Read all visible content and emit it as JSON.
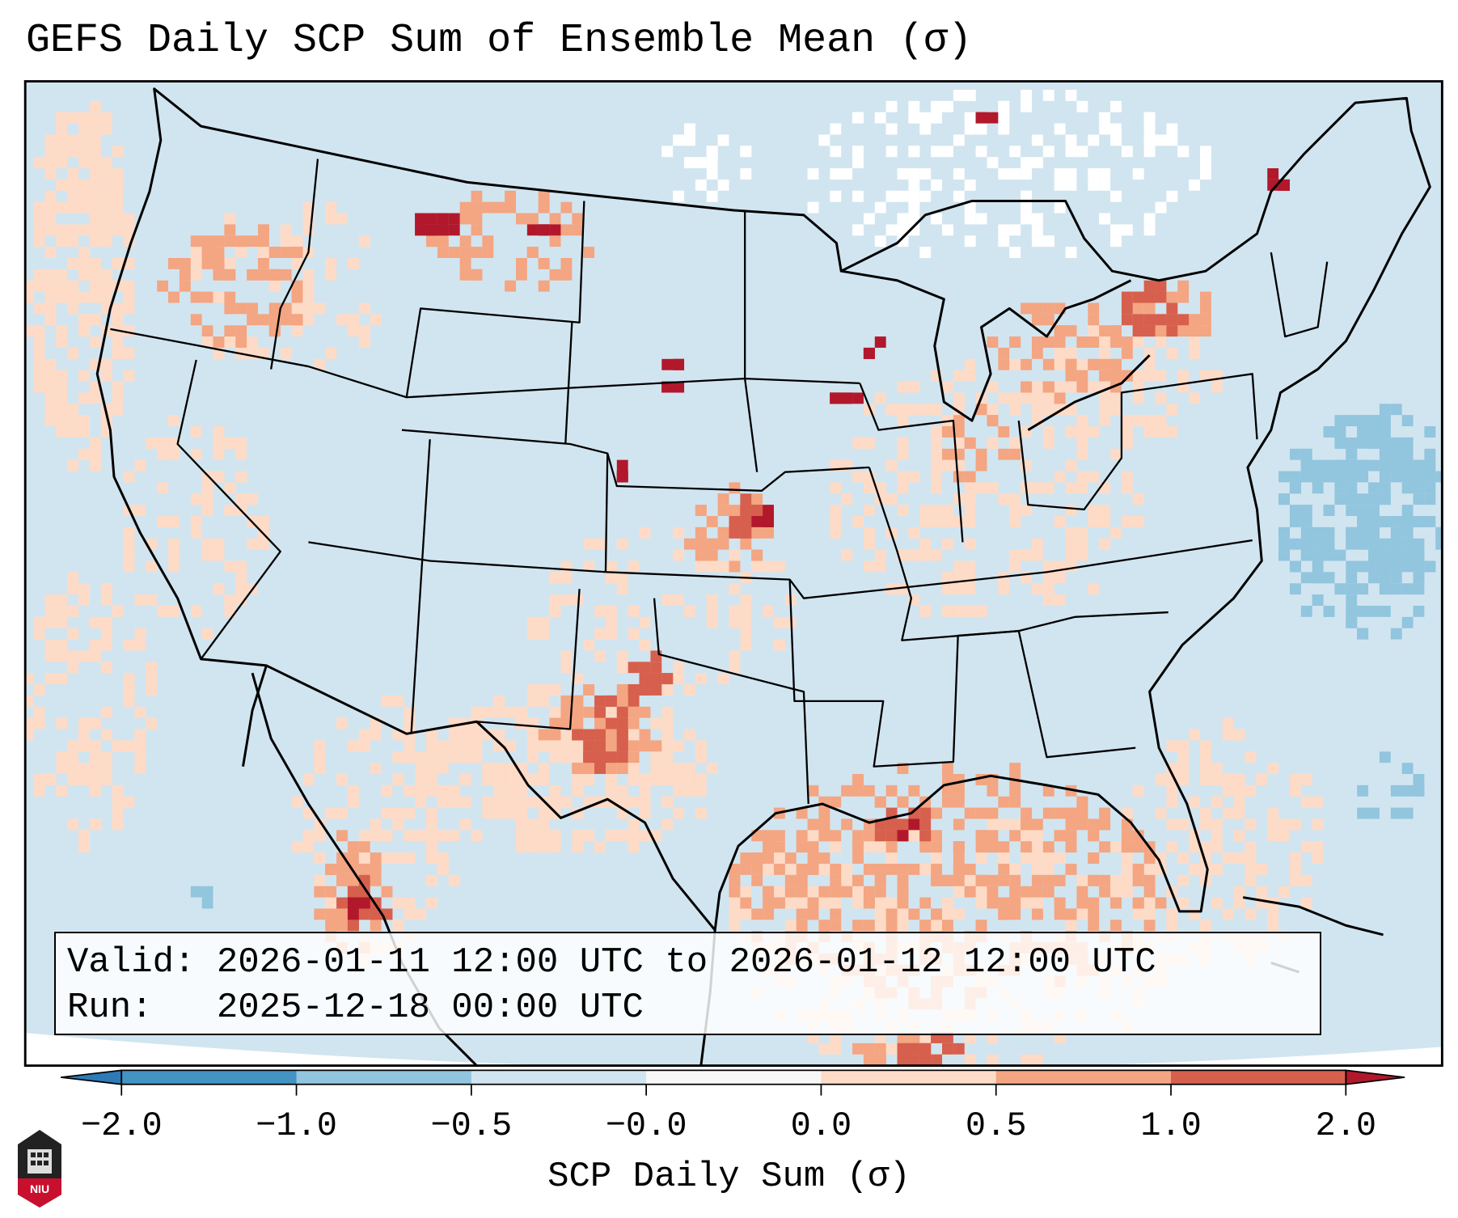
{
  "title": "GEFS Daily SCP Sum of Ensemble Mean (σ)",
  "info": {
    "valid_label": "Valid:",
    "valid_value": "2026-01-11 12:00 UTC to 2026-01-12 12:00 UTC",
    "run_label": "Run:  ",
    "run_value": "2025-12-18 00:00 UTC"
  },
  "colorbar": {
    "label": "SCP Daily Sum (σ)",
    "ticks": [
      "−2.0",
      "−1.0",
      "−0.5",
      "−0.0",
      "0.0",
      "0.5",
      "1.0",
      "2.0"
    ],
    "colors": [
      "#2c7bb6",
      "#4393c3",
      "#92c5de",
      "#d1e5f0",
      "#f7f7f7",
      "#fddbc7",
      "#f4a582",
      "#d6604d",
      "#b2182b"
    ],
    "extend": "both"
  },
  "logo": {
    "text": "NIU"
  }
}
